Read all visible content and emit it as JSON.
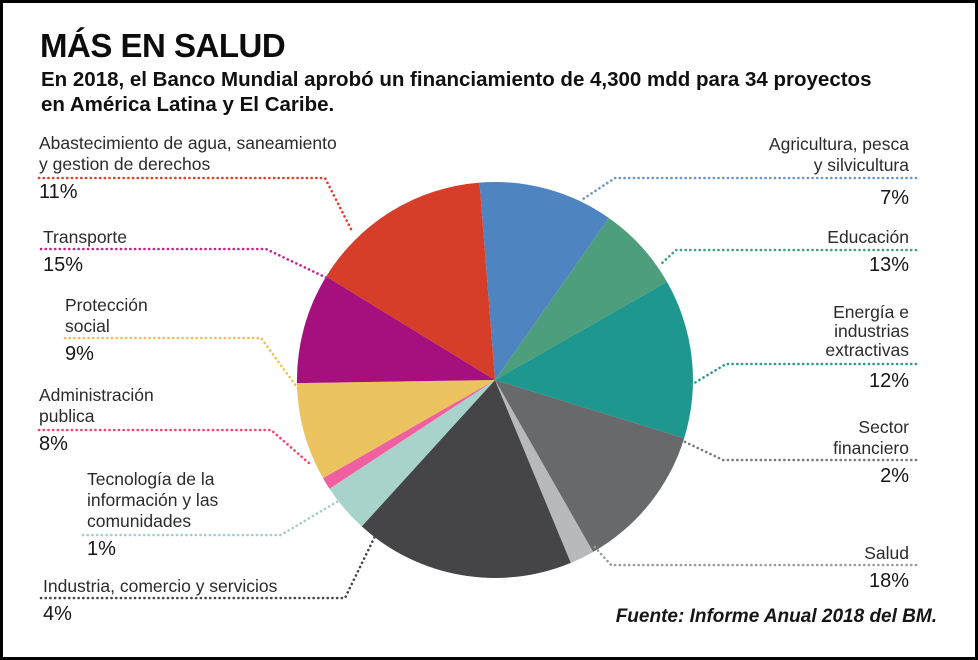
{
  "header": {
    "title": "MÁS EN SALUD",
    "subtitle_line1": "En 2018, el Banco Mundial aprobó un financiamiento de 4,300 mdd para 34 proyectos",
    "subtitle_line2": "en América Latina y El Caribe."
  },
  "source": {
    "text": "Fuente: Informe Anual 2018 del BM."
  },
  "chart_data": {
    "type": "pie",
    "title": "MÁS EN SALUD",
    "subtitle": "En 2018, el Banco Mundial aprobó un financiamiento de 4,300 mdd para 34 proyectos en América Latina y El Caribe.",
    "source": "Fuente: Informe Anual 2018 del BM.",
    "unit": "%",
    "direction": "clockwise",
    "start_angle_deg": -4.5,
    "legend_position": "callouts-around-pie",
    "slices": [
      {
        "sector": "Abastecimiento de agua, saneamiento y gestion de derechos",
        "value": 11,
        "color": "#4e84c0"
      },
      {
        "sector": "Agricultura, pesca y silvicultura",
        "value": 7,
        "color": "#4d9e7c"
      },
      {
        "sector": "Educación",
        "value": 13,
        "color": "#1e978e"
      },
      {
        "sector": "Energía e industrias extractivas",
        "value": 12,
        "color": "#68696b"
      },
      {
        "sector": "Sector financiero",
        "value": 2,
        "color": "#b7b9ba"
      },
      {
        "sector": "Salud",
        "value": 18,
        "color": "#454547"
      },
      {
        "sector": "Industria, comercio y servicios",
        "value": 4,
        "color": "#a8d3cb"
      },
      {
        "sector": "Tecnología de la información y las comunidades",
        "value": 1,
        "color": "#f05f9f"
      },
      {
        "sector": "Administración publica",
        "value": 8,
        "color": "#ebc45f"
      },
      {
        "sector": "Protección social",
        "value": 9,
        "color": "#a5107e"
      },
      {
        "sector": "Transporte",
        "value": 15,
        "color": "#d63e2a"
      }
    ]
  },
  "callouts": [
    {
      "side": "left",
      "lines": [
        "Abastecimiento de agua, saneamiento",
        "y gestion de derechos"
      ],
      "pct": "11%",
      "leader_color": "#e8392a"
    },
    {
      "side": "left",
      "lines": [
        "Transporte"
      ],
      "pct": "15%",
      "leader_color": "#c9208f"
    },
    {
      "side": "left",
      "lines": [
        "Protección",
        "social"
      ],
      "pct": "9%",
      "leader_color": "#eec050"
    },
    {
      "side": "left",
      "lines": [
        "Administración",
        "publica"
      ],
      "pct": "8%",
      "leader_color": "#f4436b"
    },
    {
      "side": "left",
      "lines": [
        "Tecnología de la",
        "información y las",
        "comunidades"
      ],
      "pct": "1%",
      "leader_color": "#9fd0c6"
    },
    {
      "side": "left",
      "lines": [
        "Industria, comercio y servicios"
      ],
      "pct": "4%",
      "leader_color": "#47474a"
    },
    {
      "side": "right",
      "lines": [
        "Agricultura, pesca",
        "y silvicultura"
      ],
      "pct": "7%",
      "leader_color": "#6c94ce"
    },
    {
      "side": "right",
      "lines": [
        "Educación"
      ],
      "pct": "13%",
      "leader_color": "#3f9e7c"
    },
    {
      "side": "right",
      "lines": [
        "Energía e",
        "industrias",
        "extractivas"
      ],
      "pct": "12%",
      "leader_color": "#2a9a91"
    },
    {
      "side": "right",
      "lines": [
        "Sector",
        "financiero"
      ],
      "pct": "2%",
      "leader_color": "#77787a"
    },
    {
      "side": "right",
      "lines": [
        "Salud"
      ],
      "pct": "18%",
      "leader_color": "#9a9b9d"
    }
  ]
}
